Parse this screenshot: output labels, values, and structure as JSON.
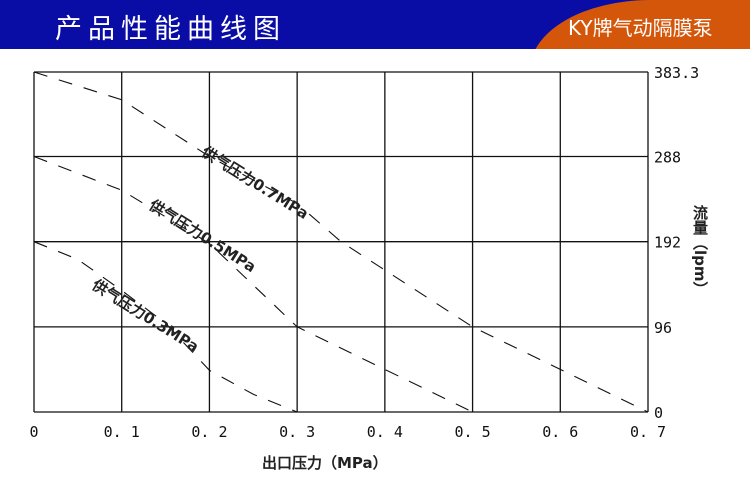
{
  "header": {
    "title": "产品性能曲线图",
    "brand": "KY牌气动隔膜泵",
    "colors": {
      "bar": "#0a0ca6",
      "badge": "#d4560a"
    }
  },
  "chart_data": {
    "type": "line",
    "title": "",
    "xlabel": "出口压力（MPa）",
    "ylabel": "流量（lpm）",
    "xlim": [
      0,
      0.7
    ],
    "ylim": [
      0,
      383.3
    ],
    "x_ticks": [
      "0",
      "0.1",
      "0.2",
      "0.3",
      "0.4",
      "0.5",
      "0.6",
      "0.7"
    ],
    "y_ticks": [
      "0",
      "96",
      "192",
      "288",
      "383.3"
    ],
    "grid": true,
    "line_style": "dashed",
    "series": [
      {
        "name": "供气压力0.7MPa",
        "x": [
          0,
          0.1,
          0.2,
          0.3,
          0.35,
          0.4,
          0.5,
          0.6,
          0.7
        ],
        "y": [
          383.3,
          352,
          288,
          235,
          192,
          160,
          96,
          48,
          0
        ]
      },
      {
        "name": "供气压力0.5MPa",
        "x": [
          0,
          0.1,
          0.2,
          0.3,
          0.4,
          0.5
        ],
        "y": [
          288,
          250,
          190,
          96,
          48,
          0
        ]
      },
      {
        "name": "供气压力0.3MPa",
        "x": [
          0,
          0.05,
          0.1,
          0.15,
          0.2,
          0.25,
          0.3
        ],
        "y": [
          192,
          172,
          137,
          100,
          47,
          20,
          0
        ]
      }
    ]
  }
}
